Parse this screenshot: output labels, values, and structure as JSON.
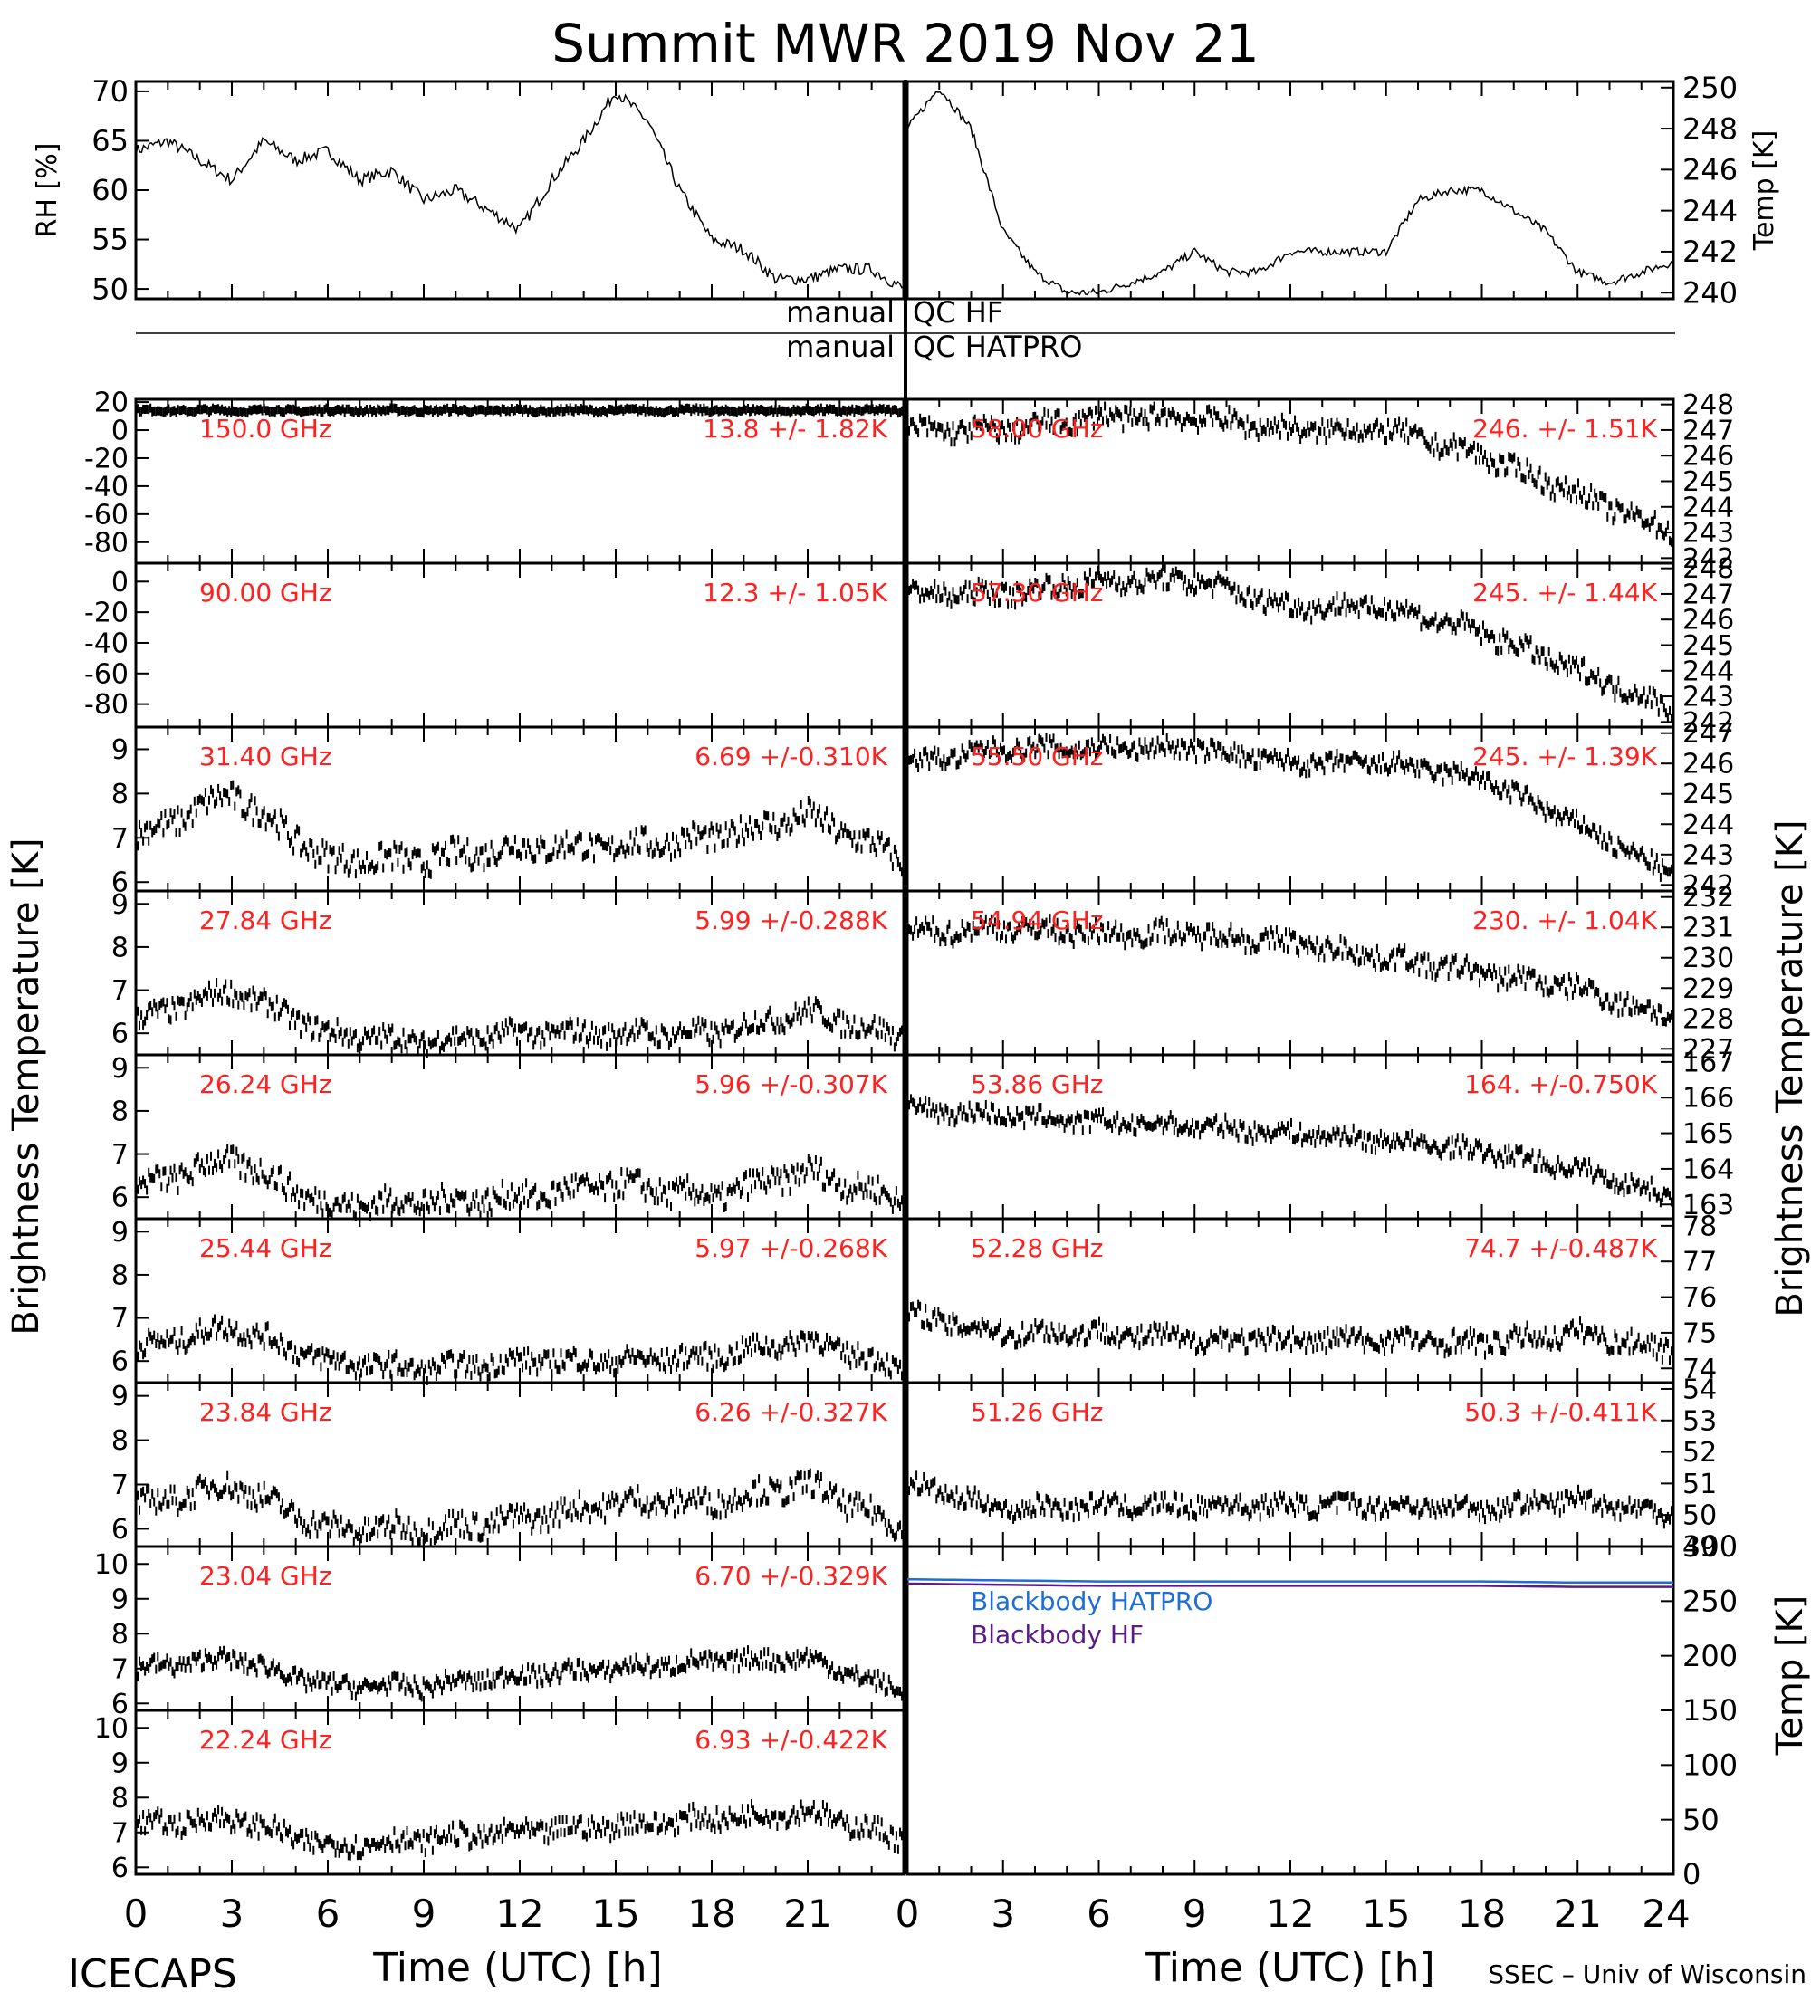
{
  "title": "Summit MWR 2019 Nov 21",
  "footer": {
    "left": "ICECAPS",
    "right": "SSEC – Univ of Wisconsin",
    "xlabel_left": "Time (UTC) [h]",
    "xlabel_right": "Time (UTC) [h]"
  },
  "qc": {
    "hf_left": "manual",
    "hf_right": "QC HF",
    "hatpro_left": "manual",
    "hatpro_right": "QC HATPRO"
  },
  "side_labels": {
    "left": "Brightness Temperature [K]",
    "right": "Brightness Temperature [K]",
    "right_bottom": "Temp [K]"
  },
  "colors": {
    "annotation": "#ff2020",
    "trace": "#000000",
    "bb_hatpro": "#1e6ed8",
    "bb_hf": "#5a1a8a"
  },
  "chart_data": [
    {
      "id": "rh",
      "type": "line",
      "ylabel": "RH [%]",
      "xlim": [
        0,
        24
      ],
      "ylim": [
        49,
        71
      ],
      "yticks": [
        50,
        55,
        60,
        65,
        70
      ],
      "x": [
        0,
        1,
        2,
        3,
        4,
        5,
        6,
        7,
        8,
        9,
        10,
        11,
        12,
        13,
        14,
        15,
        16,
        17,
        18,
        19,
        20,
        21,
        22,
        23,
        24
      ],
      "values": [
        64,
        65,
        63,
        61,
        65,
        63,
        64,
        61,
        62,
        59,
        60,
        58,
        56,
        61,
        65,
        70,
        67,
        60,
        55,
        54,
        51,
        51,
        52,
        52,
        50
      ]
    },
    {
      "id": "temp",
      "type": "line",
      "ylabel": "Temp [K]",
      "xlim": [
        0,
        24
      ],
      "ylim": [
        239.7,
        250.3
      ],
      "yticks": [
        240,
        242,
        244,
        246,
        248,
        250
      ],
      "x": [
        0,
        1,
        2,
        3,
        4,
        5,
        6,
        7,
        8,
        9,
        10,
        11,
        12,
        13,
        14,
        15,
        16,
        17,
        18,
        19,
        20,
        21,
        22,
        23,
        24
      ],
      "values": [
        248,
        250,
        248,
        243,
        241,
        240,
        240,
        240.5,
        241,
        242,
        241,
        241,
        242,
        242,
        242,
        242,
        244.5,
        245,
        245,
        244,
        243,
        241,
        240.5,
        241,
        241.5
      ]
    },
    {
      "id": "150.0",
      "type": "scatter",
      "freq_label": "150.0 GHz",
      "stat_label": "13.8 +/-  1.82K",
      "ylim": [
        -95,
        22
      ],
      "yticks": [
        20,
        0,
        -20,
        -40,
        -60,
        -80
      ],
      "base": [
        14,
        14,
        14,
        14,
        14,
        14,
        14,
        14,
        14
      ],
      "noise": 1.5
    },
    {
      "id": "90.00",
      "type": "scatter",
      "freq_label": "90.00 GHz",
      "stat_label": "12.3 +/-  1.05K",
      "ylim": [
        -95,
        12
      ],
      "yticks": [
        0,
        -20,
        -40,
        -60,
        -80
      ],
      "base": [
        12,
        12,
        12,
        12,
        12,
        12,
        12,
        12,
        12
      ],
      "noise": 0
    },
    {
      "id": "31.40",
      "type": "scatter",
      "freq_label": "31.40 GHz",
      "stat_label": "6.69 +/-0.310K",
      "ylim": [
        5.8,
        9.5
      ],
      "yticks": [
        6,
        7,
        8,
        9
      ],
      "base": [
        7,
        8,
        6.5,
        6.5,
        6.8,
        6.8,
        7,
        7.5,
        6.5
      ],
      "noise": 0.3
    },
    {
      "id": "27.84",
      "type": "scatter",
      "freq_label": "27.84 GHz",
      "stat_label": "5.99 +/-0.288K",
      "ylim": [
        5.5,
        9.3
      ],
      "yticks": [
        6,
        7,
        8,
        9
      ],
      "base": [
        6.3,
        7,
        6,
        5.8,
        6,
        6,
        6,
        6.5,
        5.9
      ],
      "noise": 0.25
    },
    {
      "id": "26.24",
      "type": "scatter",
      "freq_label": "26.24 GHz",
      "stat_label": "5.96 +/-0.307K",
      "ylim": [
        5.5,
        9.3
      ],
      "yticks": [
        6,
        7,
        8,
        9
      ],
      "base": [
        6.2,
        6.9,
        5.8,
        5.9,
        6,
        6.3,
        6,
        6.6,
        5.9
      ],
      "noise": 0.3
    },
    {
      "id": "25.44",
      "type": "scatter",
      "freq_label": "25.44 GHz",
      "stat_label": "5.97 +/-0.268K",
      "ylim": [
        5.5,
        9.3
      ],
      "yticks": [
        6,
        7,
        8,
        9
      ],
      "base": [
        6.3,
        6.8,
        6,
        5.8,
        6,
        6,
        6.1,
        6.5,
        5.8
      ],
      "noise": 0.25
    },
    {
      "id": "23.84",
      "type": "scatter",
      "freq_label": "23.84 GHz",
      "stat_label": "6.26 +/-0.327K",
      "ylim": [
        5.6,
        9.3
      ],
      "yticks": [
        6,
        7,
        8,
        9
      ],
      "base": [
        6.5,
        7,
        6,
        6,
        6.2,
        6.6,
        6.6,
        7,
        6
      ],
      "noise": 0.28
    },
    {
      "id": "23.04",
      "type": "scatter",
      "freq_label": "23.04 GHz",
      "stat_label": "6.70 +/-0.329K",
      "ylim": [
        5.8,
        10.5
      ],
      "yticks": [
        6,
        7,
        8,
        9,
        10
      ],
      "base": [
        7,
        7.3,
        6.5,
        6.5,
        6.8,
        7,
        7.2,
        7.3,
        6.3
      ],
      "noise": 0.25
    },
    {
      "id": "22.24",
      "type": "scatter",
      "freq_label": "22.24 GHz",
      "stat_label": "6.93 +/-0.422K",
      "ylim": [
        5.8,
        10.5
      ],
      "yticks": [
        6,
        7,
        8,
        9,
        10
      ],
      "base": [
        7.2,
        7.4,
        6.6,
        6.8,
        7,
        7.2,
        7.4,
        7.6,
        6.8
      ],
      "noise": 0.3
    },
    {
      "id": "58.00",
      "type": "scatter",
      "freq_label": "58.00 GHz",
      "stat_label": "246. +/- 1.51K",
      "ylim": [
        241.8,
        248.2
      ],
      "yticks": [
        242,
        243,
        244,
        245,
        246,
        247,
        248
      ],
      "base": [
        247,
        247,
        247.5,
        247.5,
        247,
        247,
        246,
        244.5,
        243
      ],
      "noise": 0.4
    },
    {
      "id": "57.30",
      "type": "scatter",
      "freq_label": "57.30 GHz",
      "stat_label": "245. +/- 1.44K",
      "ylim": [
        241.8,
        248.2
      ],
      "yticks": [
        242,
        243,
        244,
        245,
        246,
        247,
        248
      ],
      "base": [
        247,
        247,
        247.5,
        247.5,
        246.5,
        246.5,
        245.5,
        244,
        242.5
      ],
      "noise": 0.4
    },
    {
      "id": "55.50",
      "type": "scatter",
      "freq_label": "55.50 GHz",
      "stat_label": "245. +/- 1.39K",
      "ylim": [
        241.8,
        247.2
      ],
      "yticks": [
        242,
        243,
        244,
        245,
        246,
        247
      ],
      "base": [
        246,
        246.5,
        246.5,
        246.5,
        246,
        246,
        245.5,
        244,
        242.3
      ],
      "noise": 0.3
    },
    {
      "id": "54.94",
      "type": "scatter",
      "freq_label": "54.94 GHz",
      "stat_label": "230. +/- 1.04K",
      "ylim": [
        226.8,
        232.2
      ],
      "yticks": [
        227,
        228,
        229,
        230,
        231,
        232
      ],
      "base": [
        230.8,
        231,
        230.8,
        230.8,
        230.5,
        230,
        229.5,
        229,
        228
      ],
      "noise": 0.35
    },
    {
      "id": "53.86",
      "type": "scatter",
      "freq_label": "53.86 GHz",
      "stat_label": "164. +/-0.750K",
      "ylim": [
        162.6,
        167.2
      ],
      "yticks": [
        163,
        164,
        165,
        166,
        167
      ],
      "base": [
        165.7,
        165.5,
        165.3,
        165.2,
        165,
        164.8,
        164.5,
        164,
        163.2
      ],
      "noise": 0.25
    },
    {
      "id": "52.28",
      "type": "scatter",
      "freq_label": "52.28 GHz",
      "stat_label": "74.7 +/-0.487K",
      "ylim": [
        73.6,
        78.2
      ],
      "yticks": [
        74,
        75,
        76,
        77,
        78
      ],
      "base": [
        75.5,
        75,
        75,
        74.8,
        74.8,
        74.8,
        74.7,
        75,
        74.5
      ],
      "noise": 0.3
    },
    {
      "id": "51.26",
      "type": "scatter",
      "freq_label": "51.26 GHz",
      "stat_label": "50.3 +/-0.411K",
      "ylim": [
        49,
        54.2
      ],
      "yticks": [
        49,
        50,
        51,
        52,
        53,
        54
      ],
      "base": [
        51,
        50.2,
        50.3,
        50.3,
        50.3,
        50.3,
        50.2,
        50.5,
        50
      ],
      "noise": 0.3
    },
    {
      "id": "blackbody",
      "type": "line",
      "ylabel": "Temp [K]",
      "ylim": [
        0,
        300
      ],
      "yticks": [
        0,
        50,
        100,
        150,
        200,
        250,
        300
      ],
      "series": [
        {
          "name": "Blackbody HATPRO",
          "values": [
            270,
            269,
            268,
            268,
            268,
            268,
            268,
            267,
            267
          ]
        },
        {
          "name": "Blackbody HF",
          "values": [
            266,
            265,
            264,
            264,
            264,
            264,
            264,
            263,
            263
          ]
        }
      ]
    }
  ],
  "x_ticks_left": [
    "0",
    "3",
    "6",
    "9",
    "12",
    "15",
    "18",
    "21"
  ],
  "x_ticks_right": [
    "0",
    "3",
    "6",
    "9",
    "12",
    "15",
    "18",
    "21",
    "24"
  ]
}
